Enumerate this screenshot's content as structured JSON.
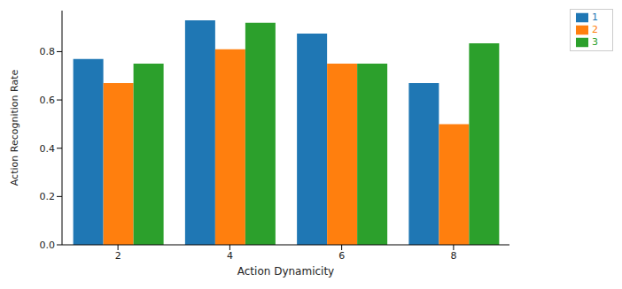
{
  "chart_data": {
    "type": "bar",
    "x_label": "Action Dynamicity",
    "y_label": "Action Recognition Rate",
    "categories": [
      "2",
      "4",
      "6",
      "8"
    ],
    "series": [
      {
        "name": "1",
        "color": "#1f77b4",
        "values": [
          0.77,
          0.93,
          0.875,
          0.67
        ]
      },
      {
        "name": "2",
        "color": "#ff7f0e",
        "values": [
          0.67,
          0.81,
          0.75,
          0.5
        ]
      },
      {
        "name": "3",
        "color": "#2ca02c",
        "values": [
          0.75,
          0.92,
          0.75,
          0.835
        ]
      }
    ],
    "ylim": [
      0,
      0.97
    ],
    "yticks": [
      {
        "value": 0,
        "label": "0.0"
      },
      {
        "value": 0.2,
        "label": "0.2"
      },
      {
        "value": 0.4,
        "label": "0.4"
      },
      {
        "value": 0.6,
        "label": "0.6"
      },
      {
        "value": 0.8,
        "label": "0.8"
      }
    ],
    "legend": "upper right"
  }
}
